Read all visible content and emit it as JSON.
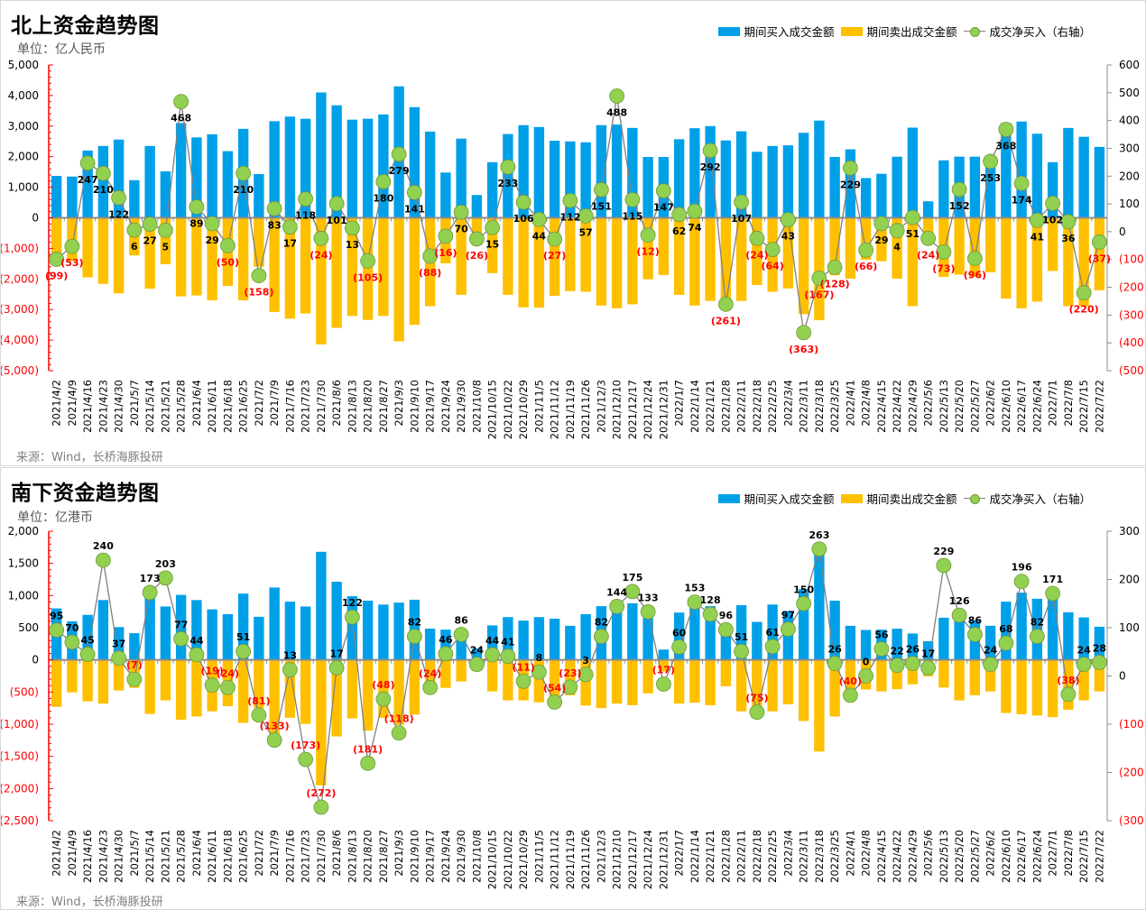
{
  "colors": {
    "buy": "#00A0E9",
    "sell": "#FFC000",
    "net_marker": "#92D050",
    "net_line": "#808080",
    "negative_text": "#FF0000",
    "left_axis": "#FF0000"
  },
  "legend": {
    "buy": "期间买入成交金额",
    "sell": "期间卖出成交金额",
    "net": "成交净买入（右轴）"
  },
  "chart_data": [
    {
      "type": "bar+line",
      "title": "北上资金趋势图",
      "unit": "单位：亿人民币",
      "source": "来源：Wind，长桥海豚投研",
      "ylim_left": [
        -5000,
        5000
      ],
      "yticks_left": [
        "5,000",
        "4,000",
        "3,000",
        "2,000",
        "1,000",
        "0",
        "(1,000)",
        "(2,000)",
        "(3,000)",
        "(4,000)",
        "(5,000)"
      ],
      "ylim_right": [
        -500,
        600
      ],
      "yticks_right": [
        "600",
        "500",
        "400",
        "300",
        "200",
        "100",
        "0",
        "(100)",
        "(200)",
        "(300)",
        "(400)",
        "(500)"
      ],
      "grid": false,
      "legend_position": "top-right",
      "categories": [
        "2021/4/2",
        "2021/4/9",
        "2021/4/16",
        "2021/4/23",
        "2021/4/30",
        "2021/5/7",
        "2021/5/14",
        "2021/5/21",
        "2021/5/28",
        "2021/6/4",
        "2021/6/11",
        "2021/6/18",
        "2021/6/25",
        "2021/7/2",
        "2021/7/9",
        "2021/7/16",
        "2021/7/23",
        "2021/7/30",
        "2021/8/6",
        "2021/8/13",
        "2021/8/20",
        "2021/8/27",
        "2021/9/3",
        "2021/9/10",
        "2021/9/17",
        "2021/9/24",
        "2021/9/30",
        "2021/10/8",
        "2021/10/15",
        "2021/10/22",
        "2021/10/29",
        "2021/11/5",
        "2021/11/12",
        "2021/11/19",
        "2021/11/26",
        "2021/12/3",
        "2021/12/10",
        "2021/12/17",
        "2021/12/24",
        "2021/12/31",
        "2022/1/7",
        "2022/1/14",
        "2022/1/21",
        "2022/1/28",
        "2022/2/11",
        "2022/2/18",
        "2022/2/25",
        "2022/3/4",
        "2022/3/11",
        "2022/3/18",
        "2022/3/25",
        "2022/4/1",
        "2022/4/8",
        "2022/4/15",
        "2022/4/22",
        "2022/4/29",
        "2022/5/6",
        "2022/5/13",
        "2022/5/20",
        "2022/5/27",
        "2022/6/2",
        "2022/6/10",
        "2022/6/17",
        "2022/6/24",
        "2022/7/1",
        "2022/7/8",
        "2022/7/15",
        "2022/7/22"
      ],
      "series": [
        {
          "name": "期间买入成交金额",
          "axis": "left",
          "type": "bar",
          "values": [
            1370,
            1350,
            2200,
            2350,
            2560,
            1230,
            2350,
            1520,
            3100,
            2630,
            2730,
            2180,
            2910,
            1430,
            3160,
            3310,
            3240,
            4100,
            3680,
            3210,
            3240,
            3380,
            4300,
            3620,
            2820,
            1480,
            2590,
            745,
            1820,
            2740,
            3030,
            2970,
            2520,
            2500,
            2470,
            3030,
            3050,
            2940,
            1990,
            1990,
            2570,
            2930,
            3000,
            2530,
            2830,
            2160,
            2350,
            2370,
            2780,
            3180,
            1990,
            2240,
            1300,
            1440,
            2000,
            2950,
            540,
            1880,
            2000,
            2000,
            1990,
            3100,
            3150,
            2750,
            1820,
            2940,
            2650,
            2320
          ]
        },
        {
          "name": "期间卖出成交金额",
          "axis": "left",
          "type": "bar",
          "values": [
            -1400,
            -1420,
            -1950,
            -2160,
            -2470,
            -1230,
            -2320,
            -1520,
            -2570,
            -2540,
            -2700,
            -2230,
            -2700,
            -1600,
            -3080,
            -3300,
            -3130,
            -4140,
            -3600,
            -3210,
            -3340,
            -3210,
            -4040,
            -3500,
            -2890,
            -1490,
            -2520,
            -900,
            -1810,
            -2520,
            -2930,
            -2940,
            -2550,
            -2400,
            -2420,
            -2870,
            -2960,
            -2830,
            -2010,
            -1870,
            -2520,
            -2870,
            -2720,
            -2800,
            -2720,
            -2200,
            -2420,
            -2310,
            -3150,
            -3350,
            -1880,
            -1990,
            -1370,
            -1420,
            -1990,
            -2890,
            -800,
            -1930,
            -1860,
            -1930,
            -1780,
            -2640,
            -2960,
            -2740,
            -1740,
            -2890,
            -2890,
            -2370
          ]
        },
        {
          "name": "成交净买入（右轴）",
          "axis": "right",
          "type": "line",
          "values": [
            -99,
            -53,
            247,
            210,
            122,
            6,
            27,
            5,
            468,
            89,
            29,
            -50,
            210,
            -158,
            83,
            17,
            118,
            -24,
            101,
            13,
            -105,
            180,
            279,
            141,
            -88,
            -16,
            70,
            -26,
            15,
            233,
            106,
            44,
            -27,
            112,
            57,
            151,
            488,
            115,
            -12,
            147,
            62,
            74,
            292,
            -261,
            107,
            -24,
            -64,
            43,
            -363,
            -167,
            -128,
            229,
            -66,
            29,
            4,
            51,
            -24,
            -73,
            152,
            -96,
            253,
            368,
            174,
            41,
            102,
            36,
            -220,
            -37
          ]
        }
      ]
    },
    {
      "type": "bar+line",
      "title": "南下资金趋势图",
      "unit": "单位：亿港币",
      "source": "来源：Wind，长桥海豚投研",
      "ylim_left": [
        -2500,
        2000
      ],
      "yticks_left": [
        "2,000",
        "1,500",
        "1,000",
        "500",
        "0",
        "(500)",
        "(1,000)",
        "(1,500)",
        "(2,000)",
        "(2,500)"
      ],
      "ylim_right": [
        -300,
        300
      ],
      "yticks_right": [
        "300",
        "200",
        "100",
        "0",
        "(100)",
        "(200)",
        "(300)"
      ],
      "grid": false,
      "legend_position": "top-right",
      "categories": [
        "2021/4/2",
        "2021/4/9",
        "2021/4/16",
        "2021/4/23",
        "2021/4/30",
        "2021/5/7",
        "2021/5/14",
        "2021/5/21",
        "2021/5/28",
        "2021/6/4",
        "2021/6/11",
        "2021/6/18",
        "2021/6/25",
        "2021/7/2",
        "2021/7/9",
        "2021/7/16",
        "2021/7/23",
        "2021/7/30",
        "2021/8/6",
        "2021/8/13",
        "2021/8/20",
        "2021/8/27",
        "2021/9/3",
        "2021/9/10",
        "2021/9/17",
        "2021/9/24",
        "2021/9/30",
        "2021/10/8",
        "2021/10/15",
        "2021/10/22",
        "2021/10/29",
        "2021/11/5",
        "2021/11/12",
        "2021/11/19",
        "2021/11/26",
        "2021/12/3",
        "2021/12/10",
        "2021/12/17",
        "2021/12/24",
        "2021/12/31",
        "2022/1/7",
        "2022/1/14",
        "2022/1/21",
        "2022/1/28",
        "2022/2/11",
        "2022/2/18",
        "2022/2/25",
        "2022/3/4",
        "2022/3/11",
        "2022/3/18",
        "2022/3/25",
        "2022/4/1",
        "2022/4/8",
        "2022/4/15",
        "2022/4/22",
        "2022/4/29",
        "2022/5/6",
        "2022/5/13",
        "2022/5/20",
        "2022/5/27",
        "2022/6/2",
        "2022/6/10",
        "2022/6/17",
        "2022/6/24",
        "2022/7/1",
        "2022/7/8",
        "2022/7/15",
        "2022/7/22"
      ],
      "series": [
        {
          "name": "期间买入成交金额",
          "axis": "left",
          "type": "bar",
          "values": [
            800,
            600,
            700,
            930,
            510,
            415,
            990,
            830,
            1010,
            930,
            785,
            710,
            1030,
            670,
            1125,
            905,
            830,
            1680,
            1215,
            990,
            920,
            860,
            890,
            935,
            485,
            470,
            450,
            180,
            535,
            665,
            610,
            665,
            640,
            530,
            710,
            835,
            850,
            880,
            655,
            160,
            735,
            850,
            835,
            475,
            850,
            590,
            860,
            760,
            1100,
            1670,
            920,
            530,
            465,
            470,
            485,
            410,
            290,
            655,
            665,
            615,
            530,
            905,
            1045,
            950,
            990,
            740,
            660,
            515
          ]
        },
        {
          "name": "期间卖出成交金额",
          "axis": "left",
          "type": "bar",
          "values": [
            -730,
            -505,
            -645,
            -680,
            -475,
            -435,
            -840,
            -630,
            -930,
            -880,
            -800,
            -720,
            -980,
            -750,
            -1250,
            -900,
            -995,
            -1950,
            -1190,
            -910,
            -1100,
            -900,
            -1010,
            -850,
            -365,
            -435,
            -335,
            -175,
            -490,
            -630,
            -630,
            -660,
            -690,
            -550,
            -710,
            -750,
            -680,
            -705,
            -520,
            -180,
            -680,
            -665,
            -705,
            -410,
            -800,
            -740,
            -800,
            -690,
            -950,
            -1425,
            -880,
            -505,
            -460,
            -490,
            -455,
            -380,
            -255,
            -430,
            -630,
            -550,
            -490,
            -825,
            -845,
            -865,
            -890,
            -775,
            -630,
            -490
          ]
        },
        {
          "name": "成交净买入（右轴）",
          "axis": "right",
          "type": "line",
          "values": [
            95,
            70,
            45,
            240,
            37,
            -7,
            173,
            203,
            77,
            44,
            -19,
            -24,
            51,
            -81,
            -133,
            13,
            -173,
            -272,
            17,
            122,
            -181,
            -48,
            -118,
            82,
            -24,
            46,
            86,
            24,
            44,
            41,
            -11,
            8,
            -54,
            -23,
            3,
            82,
            144,
            175,
            133,
            -17,
            60,
            153,
            128,
            96,
            51,
            -75,
            61,
            97,
            150,
            263,
            26,
            -40,
            0,
            56,
            22,
            26,
            17,
            229,
            126,
            86,
            24,
            68,
            196,
            82,
            171,
            -38,
            24,
            28
          ]
        }
      ]
    }
  ]
}
